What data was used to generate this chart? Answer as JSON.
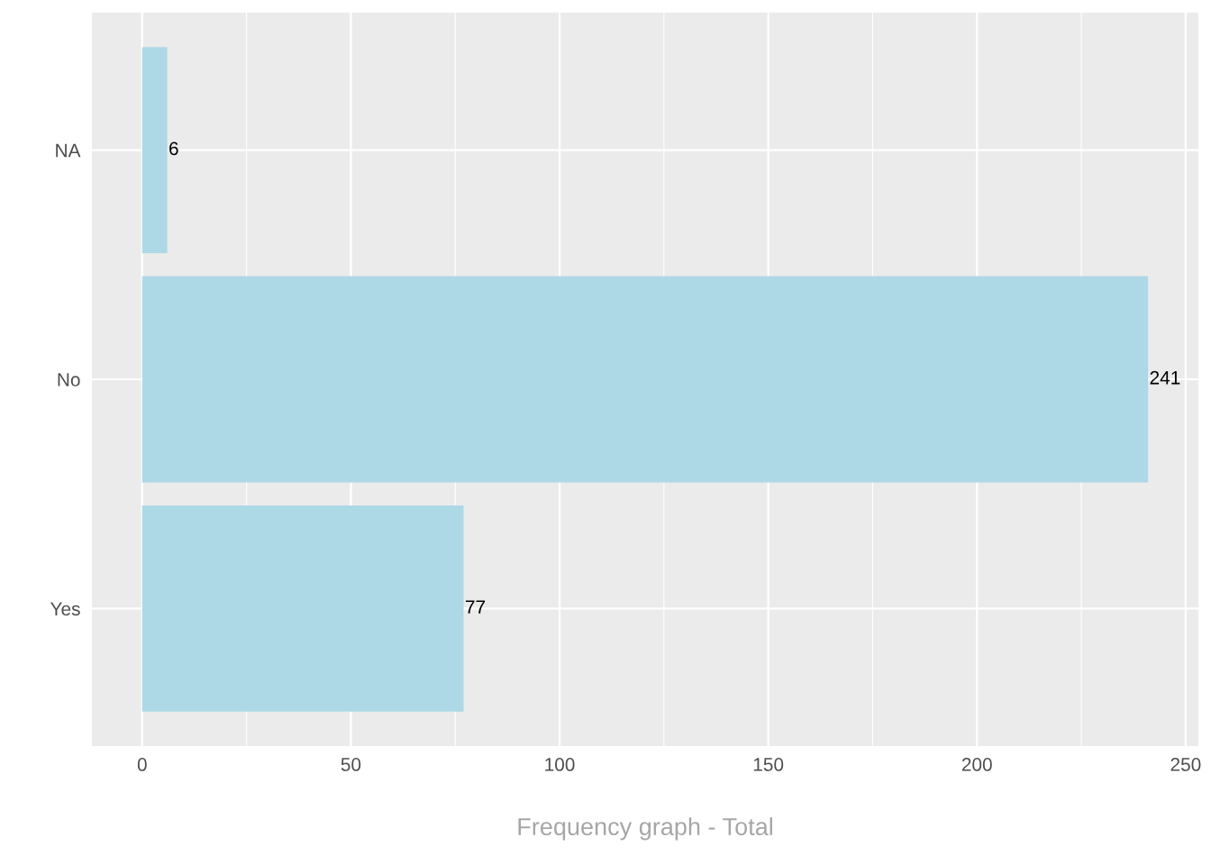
{
  "chart_data": {
    "type": "bar",
    "orientation": "horizontal",
    "categories": [
      "NA",
      "No",
      "Yes"
    ],
    "values": [
      6,
      241,
      77
    ],
    "color": "#add8e6",
    "xlabel": "Frequency graph - Total",
    "xlim": [
      -12.05,
      253.05
    ],
    "xticks": [
      0,
      {
        "value": 25,
        "label": null
      },
      50,
      {
        "value": 75,
        "label": null
      },
      100,
      {
        "value": 125,
        "label": null
      },
      150,
      {
        "value": 175,
        "label": null
      },
      200,
      {
        "value": 225,
        "label": null
      },
      250
    ],
    "grid": true,
    "data_labels": true
  }
}
